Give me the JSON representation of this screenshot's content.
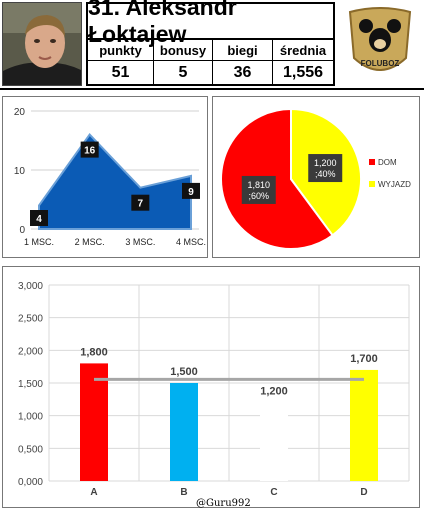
{
  "header": {
    "title": "31. Aleksandr Łoktajew",
    "stats": [
      {
        "label": "punkty",
        "value": "51"
      },
      {
        "label": "bonusy",
        "value": "5"
      },
      {
        "label": "biegi",
        "value": "36"
      },
      {
        "label": "średnia",
        "value": "1,556"
      }
    ],
    "logo_text": "FOLUBOZ"
  },
  "watermark": "@Guru992",
  "chart_data": [
    {
      "type": "area",
      "categories": [
        "1 MSC.",
        "2 MSC.",
        "3 MSC.",
        "4 MSC."
      ],
      "values": [
        4,
        16,
        7,
        9
      ],
      "data_labels": [
        "4",
        "16",
        "7",
        "9"
      ],
      "ylim": [
        0,
        20
      ],
      "yticks": [
        "0",
        "10",
        "20"
      ],
      "grid": true,
      "color": "#0b5bb5"
    },
    {
      "type": "pie",
      "slices": [
        {
          "name": "DOM",
          "value": 1.81,
          "label": "1,810 ;60%",
          "color": "#ff0000"
        },
        {
          "name": "WYJAZD",
          "value": 1.2,
          "label": "1,200 ;40%",
          "color": "#ffff00"
        }
      ],
      "legend": "right"
    },
    {
      "type": "bar",
      "categories": [
        "A",
        "B",
        "C",
        "D"
      ],
      "values": [
        1.8,
        1.5,
        1.2,
        1.7
      ],
      "data_labels": [
        "1,800",
        "1,500",
        "1,200",
        "1,700"
      ],
      "colors": [
        "#ff0000",
        "#00b0f0",
        "#ffffff",
        "#ffff00"
      ],
      "average": 1.556,
      "ylim": [
        0,
        3
      ],
      "yticks": [
        "0,000",
        "0,500",
        "1,000",
        "1,500",
        "2,000",
        "2,500",
        "3,000"
      ],
      "grid": true
    }
  ]
}
